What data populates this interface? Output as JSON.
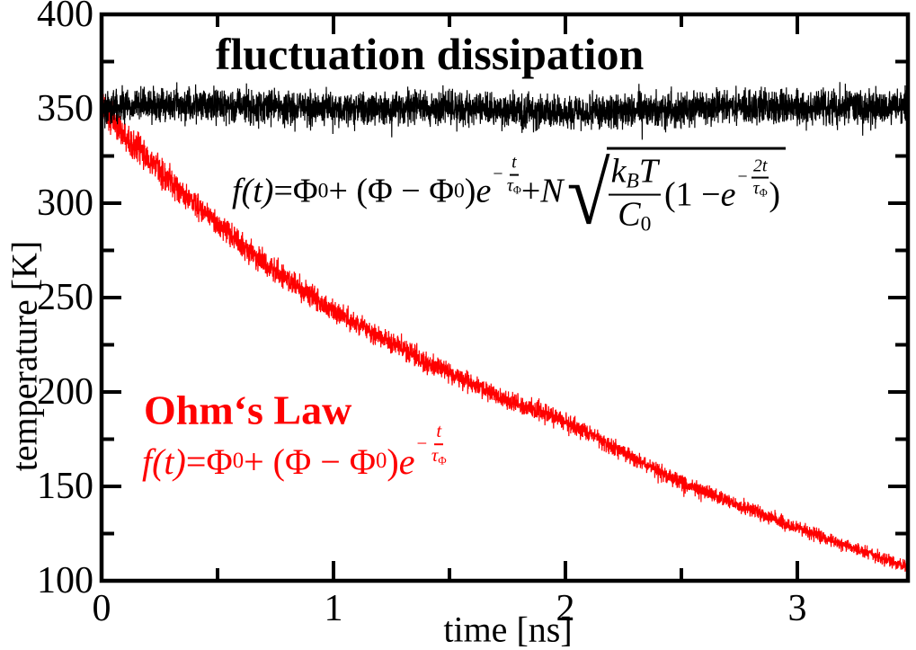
{
  "labels": {
    "fluctuation_dissipation": "fluctuation dissipation",
    "ohms_law": "Ohm‘s Law"
  },
  "chart_data": {
    "type": "line",
    "title": "",
    "xlabel": "time [ns]",
    "ylabel": "temperature [K]",
    "xlim": [
      0,
      3.48
    ],
    "ylim": [
      100,
      400
    ],
    "grid": false,
    "legend_position": "none",
    "x_ticks": {
      "major": [
        0,
        1,
        2,
        3
      ],
      "labels": [
        "0",
        "1",
        "2",
        "3"
      ],
      "minor": [
        0.5,
        1.5,
        2.5
      ]
    },
    "y_ticks": {
      "major": [
        100,
        150,
        200,
        250,
        300,
        350,
        400
      ],
      "labels": [
        "100",
        "150",
        "200",
        "250",
        "300",
        "350",
        "400"
      ],
      "minor": [
        125,
        175,
        225,
        275,
        325,
        375
      ]
    },
    "series": [
      {
        "name": "fluctuation dissipation",
        "color": "#000000",
        "style": "noisy-band",
        "noise_amplitude_K": 13,
        "x": [
          0,
          0.5,
          1,
          1.5,
          2,
          2.5,
          3,
          3.48
        ],
        "values": [
          350,
          350,
          350,
          350,
          350,
          350,
          350,
          350
        ]
      },
      {
        "name": "Ohm's Law",
        "color": "#ff0000",
        "style": "noisy-band",
        "noise_amplitude_K_start": 12,
        "noise_amplitude_K_end": 4.5,
        "x": [
          0,
          0.25,
          0.5,
          0.75,
          1,
          1.25,
          1.5,
          1.75,
          2,
          2.25,
          2.5,
          2.75,
          3,
          3.25,
          3.48
        ],
        "values": [
          350,
          317,
          289,
          264,
          243,
          226,
          210,
          196,
          184,
          168,
          152,
          140,
          128,
          117,
          107
        ]
      }
    ]
  },
  "formulas": {
    "fd": {
      "plain": "f(t) = Φ₀ + (Φ − Φ₀)e^(−t/τ_Φ) + N√[(k_B T / C₀)(1 − e^(−2t/τ_Φ))]",
      "tokens": {
        "f": "f(t)",
        "eq": " = ",
        "phi1": "Φ",
        "phi1_sub": "0",
        "run2": " + (Φ − Φ",
        "run2_sub": "0",
        "run3": ")",
        "e1": "e",
        "exp1_minus": "−",
        "exp1_num": "t",
        "exp1_den": "τ",
        "exp1_den_sub": "Φ",
        "plus2": " + ",
        "N": "N",
        "radical": "√",
        "frac_num_k": "k",
        "frac_num_k_sub": "B",
        "frac_num_T": "T",
        "frac_den_C": "C",
        "frac_den_C_sub": "0",
        "inner1": "(1 − ",
        "e2": "e",
        "exp2_minus": "−",
        "exp2_num": "2t",
        "exp2_den": "τ",
        "exp2_den_sub": "Φ",
        "inner2": ")"
      }
    },
    "ohm": {
      "plain": "f(t) = Φ₀ + (Φ − Φ₀)e^(−t/τ_Φ)",
      "tokens": {
        "f": "f(t)",
        "eq": " = ",
        "phi1": "Φ",
        "phi1_sub": "0",
        "run2": " + (Φ − Φ",
        "run2_sub": "0",
        "run3": ")",
        "e1": "e",
        "exp1_minus": "−",
        "exp1_num": "t",
        "exp1_den": "τ",
        "exp1_den_sub": "Φ"
      }
    }
  },
  "colors": {
    "axis": "#000000",
    "fluctuation_dissipation_series": "#000000",
    "ohms_law_series": "#ff0000",
    "background": "#ffffff"
  }
}
